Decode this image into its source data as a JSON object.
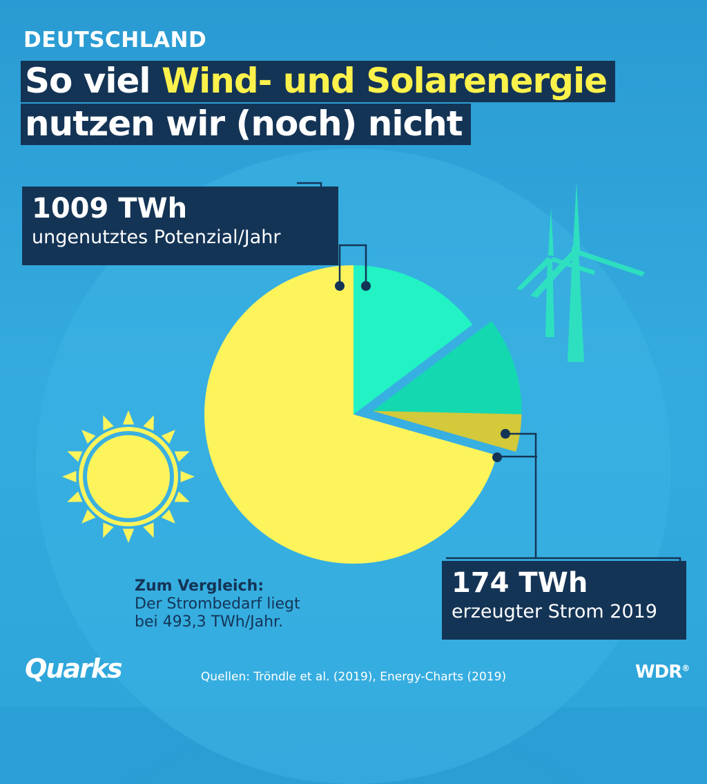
{
  "header": {
    "kicker": "DEUTSCHLAND",
    "title_l1_prefix": "So viel ",
    "title_l1_highlight": "Wind- und Solarenergie",
    "title_l2": "nutzen wir (noch) nicht"
  },
  "callouts": {
    "unused_value": "1009 TWh",
    "unused_label": "ungenutztes Potenzial/Jahr",
    "produced_value": "174 TWh",
    "produced_label": "erzeugter Strom 2019"
  },
  "comparison": {
    "heading": "Zum Vergleich:",
    "line1": "Der Strombedarf liegt",
    "line2": "bei 493,3 TWh/Jahr."
  },
  "footer": {
    "sources": "Quellen: Tröndle et al. (2019), Energy-Charts (2019)",
    "logo_left": "Quarks",
    "logo_right": "WDR"
  },
  "colors": {
    "solar_unused": "#fdf45c",
    "wind_unused": "#22f2c4",
    "wind_produced": "#14d8b0",
    "solar_produced": "#d3c93a",
    "label_box": "#143456",
    "highlight": "#fdf24b"
  },
  "chart_data": {
    "type": "pie",
    "unit": "TWh",
    "slices": [
      {
        "category": "ungenutztes Potenzial",
        "source": "solar",
        "value": 835,
        "color": "#fdf45c"
      },
      {
        "category": "ungenutztes Potenzial",
        "source": "wind",
        "value": 174,
        "color": "#22f2c4"
      },
      {
        "category": "erzeugter Strom 2019",
        "source": "wind",
        "value": 126,
        "color": "#14d8b0"
      },
      {
        "category": "erzeugter Strom 2019",
        "source": "solar",
        "value": 48,
        "color": "#d3c93a"
      }
    ],
    "totals": {
      "ungenutztes Potenzial/Jahr": 1009,
      "erzeugter Strom 2019": 174
    },
    "exploded": "erzeugter Strom 2019"
  }
}
